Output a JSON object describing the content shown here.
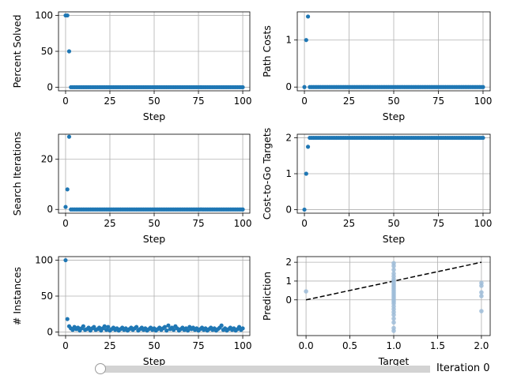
{
  "colors": {
    "marker": "#1f77b4",
    "grid": "#b0b0b0",
    "pred_marker": "#9ebcd8",
    "fit_line": "#000000"
  },
  "slider": {
    "label": "Iteration 0",
    "value": 0
  },
  "chart_data": [
    {
      "id": "percent-solved",
      "type": "scatter",
      "xlabel": "Step",
      "ylabel": "Percent Solved",
      "xlim": [
        -4,
        104
      ],
      "ylim": [
        -5,
        105
      ],
      "xticks": [
        0,
        25,
        50,
        75,
        100
      ],
      "yticks": [
        0,
        50,
        100
      ],
      "x_tick_labels": [
        "0",
        "25",
        "50",
        "75",
        "100"
      ],
      "y_tick_labels": [
        "0",
        "50",
        "100"
      ],
      "grid": true,
      "points": [
        [
          0,
          100
        ],
        [
          1,
          100
        ],
        [
          2,
          50
        ]
      ],
      "baseline": {
        "x_start": 3,
        "x_end": 100,
        "y": 0
      }
    },
    {
      "id": "path-costs",
      "type": "scatter",
      "xlabel": "Step",
      "ylabel": "Path Costs",
      "xlim": [
        -4,
        104
      ],
      "ylim": [
        -0.08,
        1.6
      ],
      "xticks": [
        0,
        25,
        50,
        75,
        100
      ],
      "yticks": [
        0,
        1
      ],
      "x_tick_labels": [
        "0",
        "25",
        "50",
        "75",
        "100"
      ],
      "y_tick_labels": [
        "0",
        "1"
      ],
      "grid": true,
      "points": [
        [
          0,
          0
        ],
        [
          1,
          1
        ],
        [
          2,
          1.5
        ]
      ],
      "baseline": {
        "x_start": 3,
        "x_end": 100,
        "y": 0
      }
    },
    {
      "id": "search-iterations",
      "type": "scatter",
      "xlabel": "Step",
      "ylabel": "Search Iterations",
      "xlim": [
        -4,
        104
      ],
      "ylim": [
        -1.5,
        30
      ],
      "xticks": [
        0,
        25,
        50,
        75,
        100
      ],
      "yticks": [
        0,
        20
      ],
      "x_tick_labels": [
        "0",
        "25",
        "50",
        "75",
        "100"
      ],
      "y_tick_labels": [
        "0",
        "20"
      ],
      "grid": true,
      "points": [
        [
          0,
          1
        ],
        [
          1,
          8
        ],
        [
          2,
          29
        ]
      ],
      "baseline": {
        "x_start": 3,
        "x_end": 100,
        "y": 0
      }
    },
    {
      "id": "cost-to-go-targets",
      "type": "scatter",
      "xlabel": "Step",
      "ylabel": "Cost-to-Go Targets",
      "xlim": [
        -4,
        104
      ],
      "ylim": [
        -0.1,
        2.1
      ],
      "xticks": [
        0,
        25,
        50,
        75,
        100
      ],
      "yticks": [
        0,
        1,
        2
      ],
      "x_tick_labels": [
        "0",
        "25",
        "50",
        "75",
        "100"
      ],
      "y_tick_labels": [
        "0",
        "1",
        "2"
      ],
      "grid": true,
      "points": [
        [
          0,
          0
        ],
        [
          1,
          1
        ],
        [
          2,
          1.75
        ]
      ],
      "baseline": {
        "x_start": 3,
        "x_end": 100,
        "y": 2
      }
    },
    {
      "id": "num-instances",
      "type": "scatter",
      "xlabel": "Step",
      "ylabel": "# Instances",
      "xlim": [
        -4,
        104
      ],
      "ylim": [
        -5,
        105
      ],
      "xticks": [
        0,
        25,
        50,
        75,
        100
      ],
      "yticks": [
        0,
        50,
        100
      ],
      "x_tick_labels": [
        "0",
        "25",
        "50",
        "75",
        "100"
      ],
      "y_tick_labels": [
        "0",
        "50",
        "100"
      ],
      "grid": true,
      "points": [
        [
          0,
          100
        ],
        [
          1,
          18
        ],
        [
          2,
          8
        ],
        [
          3,
          5
        ],
        [
          4,
          3
        ],
        [
          5,
          7
        ],
        [
          6,
          4
        ],
        [
          7,
          6
        ],
        [
          8,
          2
        ],
        [
          9,
          5
        ],
        [
          10,
          8
        ],
        [
          11,
          3
        ],
        [
          12,
          4
        ],
        [
          13,
          6
        ],
        [
          14,
          2
        ],
        [
          15,
          5
        ],
        [
          16,
          7
        ],
        [
          17,
          3
        ],
        [
          18,
          4
        ],
        [
          19,
          6
        ],
        [
          20,
          2
        ],
        [
          21,
          5
        ],
        [
          22,
          8
        ],
        [
          23,
          3
        ],
        [
          24,
          7
        ],
        [
          25,
          2
        ],
        [
          26,
          4
        ],
        [
          27,
          6
        ],
        [
          28,
          3
        ],
        [
          29,
          5
        ],
        [
          30,
          2
        ],
        [
          31,
          4
        ],
        [
          32,
          6
        ],
        [
          33,
          3
        ],
        [
          34,
          5
        ],
        [
          35,
          2
        ],
        [
          36,
          4
        ],
        [
          37,
          6
        ],
        [
          38,
          3
        ],
        [
          39,
          5
        ],
        [
          40,
          7
        ],
        [
          41,
          2
        ],
        [
          42,
          4
        ],
        [
          43,
          6
        ],
        [
          44,
          3
        ],
        [
          45,
          5
        ],
        [
          46,
          2
        ],
        [
          47,
          4
        ],
        [
          48,
          6
        ],
        [
          49,
          3
        ],
        [
          50,
          5
        ],
        [
          51,
          2
        ],
        [
          52,
          4
        ],
        [
          53,
          6
        ],
        [
          54,
          3
        ],
        [
          55,
          5
        ],
        [
          56,
          7
        ],
        [
          57,
          2
        ],
        [
          58,
          9
        ],
        [
          59,
          4
        ],
        [
          60,
          6
        ],
        [
          61,
          3
        ],
        [
          62,
          8
        ],
        [
          63,
          5
        ],
        [
          64,
          2
        ],
        [
          65,
          4
        ],
        [
          66,
          6
        ],
        [
          67,
          3
        ],
        [
          68,
          5
        ],
        [
          69,
          2
        ],
        [
          70,
          7
        ],
        [
          71,
          4
        ],
        [
          72,
          6
        ],
        [
          73,
          3
        ],
        [
          74,
          5
        ],
        [
          75,
          2
        ],
        [
          76,
          4
        ],
        [
          77,
          6
        ],
        [
          78,
          3
        ],
        [
          79,
          5
        ],
        [
          80,
          2
        ],
        [
          81,
          4
        ],
        [
          82,
          6
        ],
        [
          83,
          3
        ],
        [
          84,
          5
        ],
        [
          85,
          2
        ],
        [
          86,
          4
        ],
        [
          87,
          6
        ],
        [
          88,
          9
        ],
        [
          89,
          3
        ],
        [
          90,
          5
        ],
        [
          91,
          2
        ],
        [
          92,
          4
        ],
        [
          93,
          6
        ],
        [
          94,
          3
        ],
        [
          95,
          5
        ],
        [
          96,
          2
        ],
        [
          97,
          4
        ],
        [
          98,
          7
        ],
        [
          99,
          3
        ],
        [
          100,
          5
        ]
      ]
    },
    {
      "id": "prediction-vs-target",
      "type": "scatter",
      "xlabel": "Target",
      "ylabel": "Prediction",
      "xlim": [
        -0.1,
        2.1
      ],
      "ylim": [
        -1.9,
        2.3
      ],
      "xticks": [
        0,
        0.5,
        1,
        1.5,
        2
      ],
      "yticks": [
        0,
        1,
        2
      ],
      "x_tick_labels": [
        "0.0",
        "0.5",
        "1.0",
        "1.5",
        "2.0"
      ],
      "y_tick_labels": [
        "0",
        "1",
        "2"
      ],
      "grid": true,
      "points": [
        [
          0,
          0.45
        ],
        [
          1,
          1.95
        ],
        [
          1,
          1.8
        ],
        [
          1,
          1.6
        ],
        [
          1,
          1.4
        ],
        [
          1,
          1.25
        ],
        [
          1,
          1.1
        ],
        [
          1,
          1.0
        ],
        [
          1,
          0.9
        ],
        [
          1,
          0.8
        ],
        [
          1,
          0.7
        ],
        [
          1,
          0.6
        ],
        [
          1,
          0.5
        ],
        [
          1,
          0.4
        ],
        [
          1,
          0.3
        ],
        [
          1,
          0.2
        ],
        [
          1,
          0.1
        ],
        [
          1,
          0.0
        ],
        [
          1,
          -0.1
        ],
        [
          1,
          -0.2
        ],
        [
          1,
          -0.35
        ],
        [
          1,
          -0.5
        ],
        [
          1,
          -0.65
        ],
        [
          1,
          -0.8
        ],
        [
          1,
          -1.0
        ],
        [
          1,
          -1.2
        ],
        [
          1,
          -1.5
        ],
        [
          1,
          -1.65
        ],
        [
          2,
          0.9
        ],
        [
          2,
          0.75
        ],
        [
          2,
          0.4
        ],
        [
          2,
          0.2
        ],
        [
          2,
          -0.6
        ]
      ],
      "reference_line": {
        "from": [
          0,
          0
        ],
        "to": [
          2,
          2
        ]
      }
    }
  ]
}
